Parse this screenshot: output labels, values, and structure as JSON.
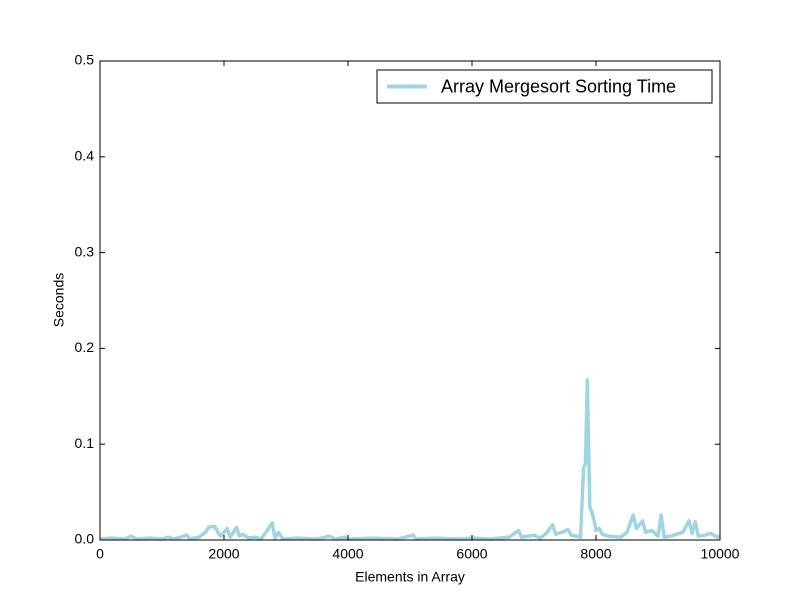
{
  "chart_data": {
    "type": "line",
    "xlabel": "Elements in Array",
    "ylabel": "Seconds",
    "x": [
      0,
      200,
      400,
      500,
      600,
      800,
      1000,
      1100,
      1200,
      1400,
      1450,
      1600,
      1700,
      1750,
      1800,
      1850,
      1900,
      1950,
      2050,
      2100,
      2200,
      2250,
      2300,
      2400,
      2500,
      2600,
      2780,
      2820,
      2880,
      2950,
      3200,
      3500,
      3700,
      3800,
      3950,
      4000,
      4400,
      4800,
      5050,
      5100,
      5400,
      5800,
      6000,
      6300,
      6600,
      6750,
      6800,
      7000,
      7100,
      7200,
      7300,
      7350,
      7450,
      7550,
      7600,
      7750,
      7800,
      7830,
      7860,
      7880,
      7900,
      7930,
      7970,
      8000,
      8050,
      8100,
      8200,
      8400,
      8500,
      8600,
      8650,
      8750,
      8800,
      8900,
      9000,
      9050,
      9100,
      9200,
      9400,
      9500,
      9550,
      9600,
      9650,
      9750,
      9850,
      9950,
      10000
    ],
    "series": [
      {
        "name": "Array Mergesort Sorting Time",
        "color": "#9fd5e3",
        "values": [
          0.001,
          0.002,
          0.001,
          0.004,
          0.001,
          0.002,
          0.001,
          0.003,
          0.001,
          0.005,
          0.001,
          0.003,
          0.008,
          0.013,
          0.014,
          0.014,
          0.008,
          0.004,
          0.012,
          0.003,
          0.013,
          0.004,
          0.006,
          0.002,
          0.003,
          0.001,
          0.018,
          0.002,
          0.008,
          0.001,
          0.002,
          0.001,
          0.004,
          0.001,
          0.003,
          0.001,
          0.002,
          0.001,
          0.005,
          0.001,
          0.002,
          0.001,
          0.002,
          0.001,
          0.003,
          0.01,
          0.003,
          0.005,
          0.002,
          0.007,
          0.016,
          0.006,
          0.008,
          0.011,
          0.005,
          0.003,
          0.075,
          0.08,
          0.167,
          0.1,
          0.035,
          0.03,
          0.02,
          0.01,
          0.012,
          0.006,
          0.004,
          0.003,
          0.008,
          0.026,
          0.012,
          0.02,
          0.008,
          0.01,
          0.004,
          0.026,
          0.003,
          0.004,
          0.008,
          0.02,
          0.007,
          0.019,
          0.004,
          0.005,
          0.007,
          0.003,
          0.004
        ]
      }
    ],
    "xlim": [
      0,
      10000
    ],
    "xticks": [
      0,
      2000,
      4000,
      6000,
      8000,
      10000
    ],
    "ylim": [
      0,
      0.5
    ],
    "yticks": [
      {
        "value": 0,
        "label": "0.0"
      },
      0.1,
      0.2,
      0.3,
      0.4,
      0.5
    ],
    "legend": "upper right"
  }
}
